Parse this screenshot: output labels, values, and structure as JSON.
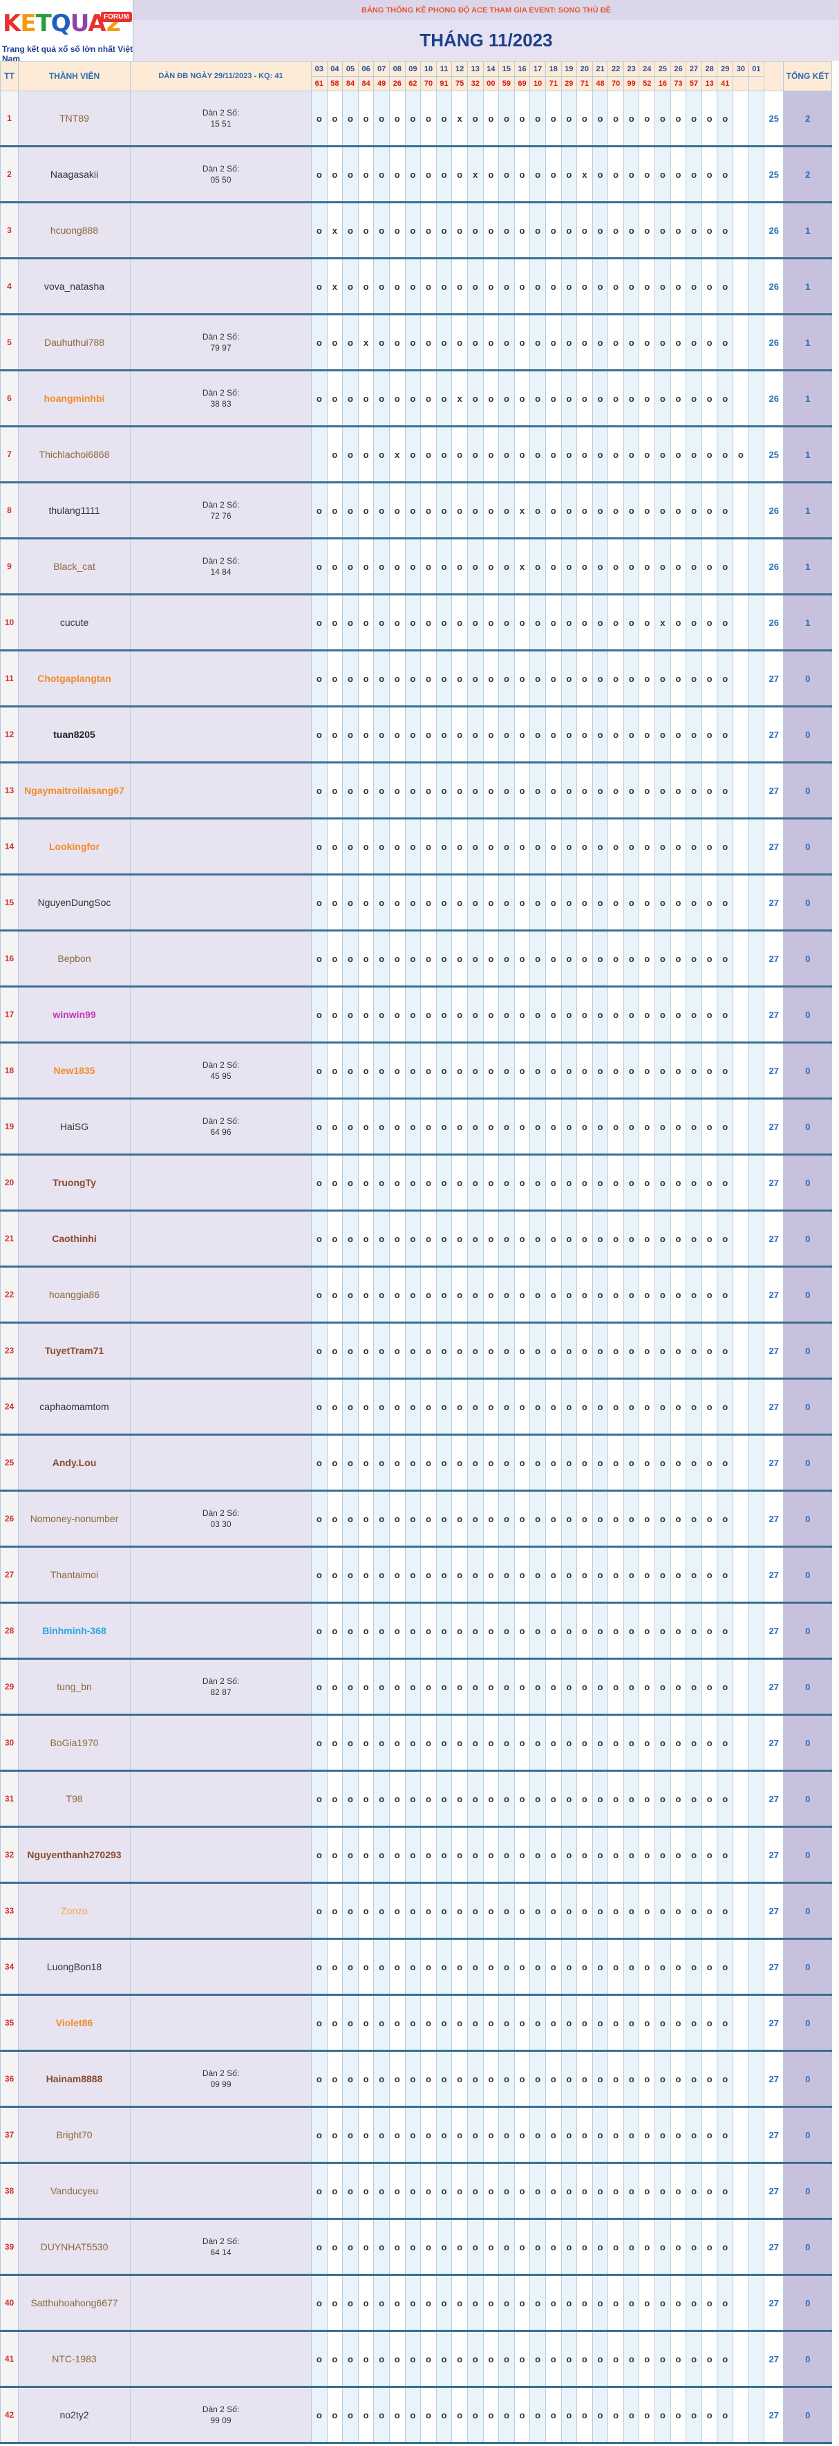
{
  "logo": {
    "letters": [
      {
        "ch": "K",
        "color": "#e8312f"
      },
      {
        "ch": "E",
        "color": "#f39c12"
      },
      {
        "ch": "T",
        "color": "#2a9d3f"
      },
      {
        "ch": "Q",
        "color": "#1f5fbf"
      },
      {
        "ch": "U",
        "color": "#8e44ad"
      },
      {
        "ch": "A",
        "color": "#e8312f"
      },
      {
        "ch": "2",
        "color": "#f39c12"
      }
    ],
    "badge": "FORUM",
    "tagline": "Trang kết quả xổ số lớn nhất Việt Nam"
  },
  "header": {
    "subtitle": "BẢNG THỐNG KÊ PHONG ĐỘ ACE THAM GIA EVENT: SONG THỦ ĐỀ",
    "title": "THÁNG 11/2023"
  },
  "columns": {
    "tt": "TT",
    "member": "THÀNH VIÊN",
    "dan": "DÀN ĐB NGÀY 29/11/2023 - KQ: 41",
    "total": "TỔNG KẾT",
    "days": [
      "03",
      "04",
      "05",
      "06",
      "07",
      "08",
      "09",
      "10",
      "11",
      "12",
      "13",
      "14",
      "15",
      "16",
      "17",
      "18",
      "19",
      "20",
      "21",
      "22",
      "23",
      "24",
      "25",
      "26",
      "27",
      "28",
      "29",
      "30",
      "01"
    ],
    "results": [
      "61",
      "58",
      "84",
      "84",
      "49",
      "26",
      "62",
      "70",
      "91",
      "75",
      "32",
      "00",
      "59",
      "69",
      "10",
      "71",
      "29",
      "71",
      "48",
      "70",
      "99",
      "52",
      "16",
      "73",
      "57",
      "13",
      "41",
      "",
      ""
    ]
  },
  "colors": {
    "col_even": "#e9f3fa",
    "col_odd": "#ffffff",
    "border_row": "#3a6f8e"
  },
  "rows": [
    {
      "tt": "1",
      "name": "TNT89",
      "name_color": "#8b6a3a",
      "bold": false,
      "dan": [
        "Dàn 2 Số:",
        "15 51"
      ],
      "marks": "oooooooooxooooooooooooooooo",
      "count": "25",
      "total": "2",
      "blank_first": false
    },
    {
      "tt": "2",
      "name": "Naagasakii",
      "name_color": "#333333",
      "bold": false,
      "dan": [
        "Dàn 2 Số:",
        "05 50"
      ],
      "marks": "ooooooooooxooooooxooooooooo",
      "count": "25",
      "total": "2",
      "blank_first": false
    },
    {
      "tt": "3",
      "name": "hcuong888",
      "name_color": "#8b6a3a",
      "bold": false,
      "dan": [],
      "marks": "oxooooooooooooooooooooooooo",
      "count": "26",
      "total": "1",
      "blank_first": false
    },
    {
      "tt": "4",
      "name": "vova_natasha",
      "name_color": "#333333",
      "bold": false,
      "dan": [],
      "marks": "oxooooooooooooooooooooooooo",
      "count": "26",
      "total": "1",
      "blank_first": false
    },
    {
      "tt": "5",
      "name": "Dauhuthui788",
      "name_color": "#8b6a3a",
      "bold": false,
      "dan": [
        "Dàn 2 Số:",
        "79 97"
      ],
      "marks": "oooxooooooooooooooooooooooo",
      "count": "26",
      "total": "1",
      "blank_first": false
    },
    {
      "tt": "6",
      "name": "hoangminhbi",
      "name_color": "#f28c28",
      "bold": true,
      "dan": [
        "Dàn 2 Số:",
        "38 83"
      ],
      "marks": "oooooooooxooooooooooooooooo",
      "count": "26",
      "total": "1",
      "blank_first": false
    },
    {
      "tt": "7",
      "name": "Thichlachoi6868",
      "name_color": "#8b6a3a",
      "bold": false,
      "dan": [],
      "marks": "ooooxoooooooooooooooooooooo",
      "count": "25",
      "total": "1",
      "blank_first": true
    },
    {
      "tt": "8",
      "name": "thulang1111",
      "name_color": "#333333",
      "bold": false,
      "dan": [
        "Dàn 2 Số:",
        "72 76"
      ],
      "marks": "oooooooooooooxooooooooooooo",
      "count": "26",
      "total": "1",
      "blank_first": false
    },
    {
      "tt": "9",
      "name": "Black_cat",
      "name_color": "#8b6a3a",
      "bold": false,
      "dan": [
        "Dàn 2 Số:",
        "14 84"
      ],
      "marks": "oooooooooooooxooooooooooooo",
      "count": "26",
      "total": "1",
      "blank_first": false
    },
    {
      "tt": "10",
      "name": "cucute",
      "name_color": "#333333",
      "bold": false,
      "dan": [],
      "marks": "ooooooooooooooooooooooxoooo",
      "count": "26",
      "total": "1",
      "blank_first": false
    },
    {
      "tt": "11",
      "name": "Chotgaplangtan",
      "name_color": "#f28c28",
      "bold": true,
      "dan": [],
      "marks": "ooooooooooooooooooooooooooo",
      "count": "27",
      "total": "0",
      "blank_first": false
    },
    {
      "tt": "12",
      "name": "tuan8205",
      "name_color": "#222222",
      "bold": true,
      "dan": [],
      "marks": "ooooooooooooooooooooooooooo",
      "count": "27",
      "total": "0",
      "blank_first": false
    },
    {
      "tt": "13",
      "name": "Ngaymaitroilaisang67",
      "name_color": "#f28c28",
      "bold": true,
      "dan": [],
      "marks": "ooooooooooooooooooooooooooo",
      "count": "27",
      "total": "0",
      "blank_first": false
    },
    {
      "tt": "14",
      "name": "Lookingfor",
      "name_color": "#f28c28",
      "bold": true,
      "dan": [],
      "marks": "ooooooooooooooooooooooooooo",
      "count": "27",
      "total": "0",
      "blank_first": false
    },
    {
      "tt": "15",
      "name": "NguyenDungSoc",
      "name_color": "#333333",
      "bold": false,
      "dan": [],
      "marks": "ooooooooooooooooooooooooooo",
      "count": "27",
      "total": "0",
      "blank_first": false
    },
    {
      "tt": "16",
      "name": "Bepbon",
      "name_color": "#8b6a3a",
      "bold": false,
      "dan": [],
      "marks": "ooooooooooooooooooooooooooo",
      "count": "27",
      "total": "0",
      "blank_first": false
    },
    {
      "tt": "17",
      "name": "winwin99",
      "name_color": "#c03ab8",
      "bold": true,
      "dan": [],
      "marks": "ooooooooooooooooooooooooooo",
      "count": "27",
      "total": "0",
      "blank_first": false
    },
    {
      "tt": "18",
      "name": "New1835",
      "name_color": "#f28c28",
      "bold": true,
      "dan": [
        "Dàn 2 Số:",
        "45 95"
      ],
      "marks": "ooooooooooooooooooooooooooo",
      "count": "27",
      "total": "0",
      "blank_first": false
    },
    {
      "tt": "19",
      "name": "HaiSG",
      "name_color": "#333333",
      "bold": false,
      "dan": [
        "Dàn 2 Số:",
        "64 96"
      ],
      "marks": "ooooooooooooooooooooooooooo",
      "count": "27",
      "total": "0",
      "blank_first": false
    },
    {
      "tt": "20",
      "name": "TruongTy",
      "name_color": "#8b4a2a",
      "bold": true,
      "dan": [],
      "marks": "ooooooooooooooooooooooooooo",
      "count": "27",
      "total": "0",
      "blank_first": false
    },
    {
      "tt": "21",
      "name": "Caothinhi",
      "name_color": "#8b4a2a",
      "bold": true,
      "dan": [],
      "marks": "ooooooooooooooooooooooooooo",
      "count": "27",
      "total": "0",
      "blank_first": false
    },
    {
      "tt": "22",
      "name": "hoanggia86",
      "name_color": "#8b6a3a",
      "bold": false,
      "dan": [],
      "marks": "ooooooooooooooooooooooooooo",
      "count": "27",
      "total": "0",
      "blank_first": false
    },
    {
      "tt": "23",
      "name": "TuyetTram71",
      "name_color": "#8b4a2a",
      "bold": true,
      "dan": [],
      "marks": "ooooooooooooooooooooooooooo",
      "count": "27",
      "total": "0",
      "blank_first": false
    },
    {
      "tt": "24",
      "name": "caphaomamtom",
      "name_color": "#333333",
      "bold": false,
      "dan": [],
      "marks": "ooooooooooooooooooooooooooo",
      "count": "27",
      "total": "0",
      "blank_first": false
    },
    {
      "tt": "25",
      "name": "Andy.Lou",
      "name_color": "#8b4a2a",
      "bold": true,
      "dan": [],
      "marks": "ooooooooooooooooooooooooooo",
      "count": "27",
      "total": "0",
      "blank_first": false
    },
    {
      "tt": "26",
      "name": "Nomoney-nonumber",
      "name_color": "#8b6a3a",
      "bold": false,
      "dan": [
        "Dàn 2 Số:",
        "03 30"
      ],
      "marks": "ooooooooooooooooooooooooooo",
      "count": "27",
      "total": "0",
      "blank_first": false
    },
    {
      "tt": "27",
      "name": "Thantaimoi",
      "name_color": "#8b6a3a",
      "bold": false,
      "dan": [],
      "marks": "ooooooooooooooooooooooooooo",
      "count": "27",
      "total": "0",
      "blank_first": false
    },
    {
      "tt": "28",
      "name": "Binhminh-368",
      "name_color": "#2aa6e0",
      "bold": true,
      "dan": [],
      "marks": "ooooooooooooooooooooooooooo",
      "count": "27",
      "total": "0",
      "blank_first": false
    },
    {
      "tt": "29",
      "name": "tung_bn",
      "name_color": "#8b6a3a",
      "bold": false,
      "dan": [
        "Dàn 2 Số:",
        "82 87"
      ],
      "marks": "ooooooooooooooooooooooooooo",
      "count": "27",
      "total": "0",
      "blank_first": false
    },
    {
      "tt": "30",
      "name": "BoGia1970",
      "name_color": "#8b6a3a",
      "bold": false,
      "dan": [],
      "marks": "ooooooooooooooooooooooooooo",
      "count": "27",
      "total": "0",
      "blank_first": false
    },
    {
      "tt": "31",
      "name": "T98",
      "name_color": "#8b6a3a",
      "bold": false,
      "dan": [],
      "marks": "ooooooooooooooooooooooooooo",
      "count": "27",
      "total": "0",
      "blank_first": false
    },
    {
      "tt": "32",
      "name": "Nguyenthanh270293",
      "name_color": "#8b4a2a",
      "bold": true,
      "dan": [],
      "marks": "ooooooooooooooooooooooooooo",
      "count": "27",
      "total": "0",
      "blank_first": false
    },
    {
      "tt": "33",
      "name": "Zonzo",
      "name_color": "#f2a64a",
      "bold": false,
      "dan": [],
      "marks": "ooooooooooooooooooooooooooo",
      "count": "27",
      "total": "0",
      "blank_first": false
    },
    {
      "tt": "34",
      "name": "LuongBon18",
      "name_color": "#333333",
      "bold": false,
      "dan": [],
      "marks": "ooooooooooooooooooooooooooo",
      "count": "27",
      "total": "0",
      "blank_first": false
    },
    {
      "tt": "35",
      "name": "Violet86",
      "name_color": "#f28c28",
      "bold": true,
      "dan": [],
      "marks": "ooooooooooooooooooooooooooo",
      "count": "27",
      "total": "0",
      "blank_first": false
    },
    {
      "tt": "36",
      "name": "Hainam8888",
      "name_color": "#8b4a2a",
      "bold": true,
      "dan": [
        "Dàn 2 Số:",
        "09 99"
      ],
      "marks": "ooooooooooooooooooooooooooo",
      "count": "27",
      "total": "0",
      "blank_first": false
    },
    {
      "tt": "37",
      "name": "Bright70",
      "name_color": "#8b6a3a",
      "bold": false,
      "dan": [],
      "marks": "ooooooooooooooooooooooooooo",
      "count": "27",
      "total": "0",
      "blank_first": false
    },
    {
      "tt": "38",
      "name": "Vanducyeu",
      "name_color": "#8b6a3a",
      "bold": false,
      "dan": [],
      "marks": "ooooooooooooooooooooooooooo",
      "count": "27",
      "total": "0",
      "blank_first": false
    },
    {
      "tt": "39",
      "name": "DUYNHAT5530",
      "name_color": "#8b6a3a",
      "bold": false,
      "dan": [
        "Dàn 2 Số:",
        "64 14"
      ],
      "marks": "ooooooooooooooooooooooooooo",
      "count": "27",
      "total": "0",
      "blank_first": false
    },
    {
      "tt": "40",
      "name": "Satthuhoahong6677",
      "name_color": "#8b6a3a",
      "bold": false,
      "dan": [],
      "marks": "ooooooooooooooooooooooooooo",
      "count": "27",
      "total": "0",
      "blank_first": false
    },
    {
      "tt": "41",
      "name": "NTC-1983",
      "name_color": "#8b6a3a",
      "bold": false,
      "dan": [],
      "marks": "ooooooooooooooooooooooooooo",
      "count": "27",
      "total": "0",
      "blank_first": false
    },
    {
      "tt": "42",
      "name": "no2ty2",
      "name_color": "#333333",
      "bold": false,
      "dan": [
        "Dàn 2 Số:",
        "99 09"
      ],
      "marks": "ooooooooooooooooooooooooooo",
      "count": "27",
      "total": "0",
      "blank_first": false
    }
  ]
}
